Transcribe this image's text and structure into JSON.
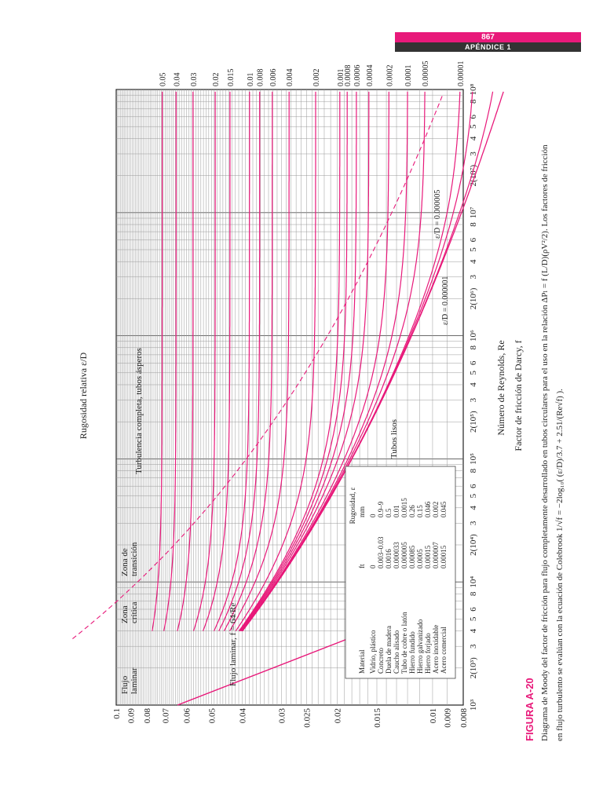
{
  "header": {
    "page_number": "867",
    "section": "APÉNDICE 1"
  },
  "figure": {
    "label": "FIGURA A-20",
    "caption_line1": "Diagrama de Moody del factor de fricción para flujo completamente desarrollado en tubos circulares para el uso en la relación ΔPₗ = f (L/D)(ρV²/2). Los factores de fricción",
    "caption_line2": "en flujo turbulento se evalúan con la ecuación de Colebrook  1/√f = −2log₁₀( (ε/D)/3.7 + 2.51/(Re√f) )."
  },
  "chart_data": {
    "type": "line",
    "title": "Diagrama de Moody",
    "xlabel": "Número de Reynolds, Re",
    "ylabel": "Factor de fricción de Darcy, f",
    "y2label": "Rugosidad relativa ε/D",
    "xscale": "log",
    "yscale": "log",
    "xlim": [
      1000,
      100000000
    ],
    "ylim": [
      0.008,
      0.1
    ],
    "grid": true,
    "x_ticks": [
      {
        "v": 1000,
        "label": "10³"
      },
      {
        "v": 2000,
        "label": "2(10³)"
      },
      {
        "v": 3000,
        "label": "3"
      },
      {
        "v": 4000,
        "label": "4"
      },
      {
        "v": 5000,
        "label": "5"
      },
      {
        "v": 6000,
        "label": "6"
      },
      {
        "v": 8000,
        "label": "8"
      },
      {
        "v": 10000,
        "label": "10⁴"
      },
      {
        "v": 20000,
        "label": "2(10⁴)"
      },
      {
        "v": 30000,
        "label": "3"
      },
      {
        "v": 40000,
        "label": "4"
      },
      {
        "v": 50000,
        "label": "5"
      },
      {
        "v": 60000,
        "label": "6"
      },
      {
        "v": 80000,
        "label": "8"
      },
      {
        "v": 100000,
        "label": "10⁵"
      },
      {
        "v": 200000,
        "label": "2(10⁵)"
      },
      {
        "v": 300000,
        "label": "3"
      },
      {
        "v": 400000,
        "label": "4"
      },
      {
        "v": 500000,
        "label": "5"
      },
      {
        "v": 600000,
        "label": "6"
      },
      {
        "v": 800000,
        "label": "8"
      },
      {
        "v": 1000000,
        "label": "10⁶"
      },
      {
        "v": 2000000,
        "label": "2(10⁶)"
      },
      {
        "v": 3000000,
        "label": "3"
      },
      {
        "v": 4000000,
        "label": "4"
      },
      {
        "v": 5000000,
        "label": "5"
      },
      {
        "v": 6000000,
        "label": "6"
      },
      {
        "v": 8000000,
        "label": "8"
      },
      {
        "v": 10000000,
        "label": "10⁷"
      },
      {
        "v": 20000000,
        "label": "2(10⁷)"
      },
      {
        "v": 30000000,
        "label": "3"
      },
      {
        "v": 40000000,
        "label": "4"
      },
      {
        "v": 50000000,
        "label": "5"
      },
      {
        "v": 60000000,
        "label": "6"
      },
      {
        "v": 80000000,
        "label": "8"
      },
      {
        "v": 100000000,
        "label": "10⁸"
      }
    ],
    "y_ticks": [
      {
        "v": 0.1,
        "label": "0.1"
      },
      {
        "v": 0.09,
        "label": "0.09"
      },
      {
        "v": 0.08,
        "label": "0.08"
      },
      {
        "v": 0.07,
        "label": "0.07"
      },
      {
        "v": 0.06,
        "label": "0.06"
      },
      {
        "v": 0.05,
        "label": "0.05"
      },
      {
        "v": 0.04,
        "label": "0.04"
      },
      {
        "v": 0.03,
        "label": "0.03"
      },
      {
        "v": 0.025,
        "label": "0.025"
      },
      {
        "v": 0.02,
        "label": "0.02"
      },
      {
        "v": 0.015,
        "label": "0.015"
      },
      {
        "v": 0.01,
        "label": "0.01"
      },
      {
        "v": 0.009,
        "label": "0.009"
      },
      {
        "v": 0.008,
        "label": "0.008"
      }
    ],
    "roughness_curves": [
      0.05,
      0.04,
      0.03,
      0.02,
      0.015,
      0.01,
      0.008,
      0.006,
      0.004,
      0.002,
      0.001,
      0.0008,
      0.0006,
      0.0004,
      0.0002,
      0.0001,
      5e-05,
      1e-05,
      5e-06,
      1e-06
    ],
    "right_labels": [
      {
        "v": 0.05,
        "label": "0.05"
      },
      {
        "v": 0.04,
        "label": "0.04"
      },
      {
        "v": 0.03,
        "label": "0.03"
      },
      {
        "v": 0.02,
        "label": "0.02"
      },
      {
        "v": 0.015,
        "label": "0.015"
      },
      {
        "v": 0.01,
        "label": "0.01"
      },
      {
        "v": 0.008,
        "label": "0.008"
      },
      {
        "v": 0.006,
        "label": "0.006"
      },
      {
        "v": 0.004,
        "label": "0.004"
      },
      {
        "v": 0.002,
        "label": "0.002"
      },
      {
        "v": 0.001,
        "label": "0.001"
      },
      {
        "v": 0.0008,
        "label": "0.0008"
      },
      {
        "v": 0.0006,
        "label": "0.0006"
      },
      {
        "v": 0.0004,
        "label": "0.0004"
      },
      {
        "v": 0.0002,
        "label": "0.0002"
      },
      {
        "v": 0.0001,
        "label": "0.0001"
      },
      {
        "v": 5e-05,
        "label": "0.00005"
      },
      {
        "v": 1e-05,
        "label": "0.00001"
      }
    ],
    "laminar": {
      "label": "Flujo laminar, f = 64/Re",
      "formula": "64/Re"
    },
    "annotations": {
      "flujo_laminar": [
        "Flujo",
        "laminar"
      ],
      "zona_critica": [
        "Zona",
        "crítica"
      ],
      "zona_transicion": [
        "Zona de",
        "transición"
      ],
      "turbulencia": "Turbulencia completa, tubos ásperos",
      "tubos_lisos": "Tubos lisos",
      "ed_000005": "ε/D = 0.000005",
      "ed_000001": "ε/D = 0.000001"
    },
    "materials_table": {
      "header_group": "Rugosidad, ε",
      "columns": [
        "Material",
        "ft",
        "mm"
      ],
      "rows": [
        [
          "Vidrio, plástico",
          "0",
          "0"
        ],
        [
          "Concreto",
          "0.003–0.03",
          "0.9–9"
        ],
        [
          "Duela de madera",
          "0.0016",
          "0.5"
        ],
        [
          "Caucho alisado",
          "0.000033",
          "0.01"
        ],
        [
          "Tubo de cobre o latón",
          "0.000005",
          "0.0015"
        ],
        [
          "Hierro fundido",
          "0.00085",
          "0.26"
        ],
        [
          "Hierro galvanizado",
          "0.0005",
          "0.15"
        ],
        [
          "Hierro forjado",
          "0.00015",
          "0.046"
        ],
        [
          "Acero inoxidable",
          "0.000007",
          "0.002"
        ],
        [
          "Acero comercial",
          "0.00015",
          "0.045"
        ]
      ]
    }
  }
}
